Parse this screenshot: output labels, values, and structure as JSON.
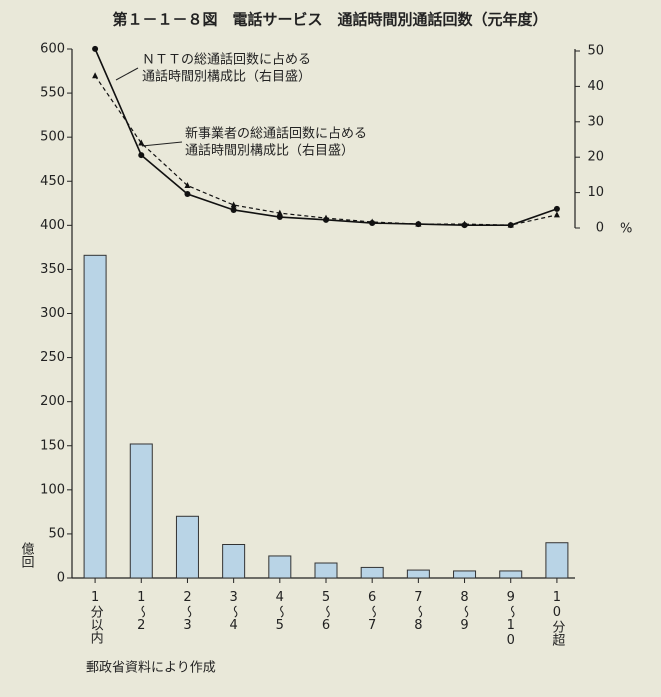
{
  "chart_data": {
    "type": "bar",
    "title": "第１－１－８図　電話サービス　通話時間別通話回数（元年度）",
    "categories": [
      "1分以内",
      "1～2",
      "2～3",
      "3～4",
      "4～5",
      "5～6",
      "6～7",
      "7～8",
      "8～9",
      "9～10",
      "10分超"
    ],
    "y_unit": "億回",
    "y2_unit": "%",
    "ylim": [
      0,
      600
    ],
    "yticks": [
      0,
      50,
      100,
      150,
      200,
      250,
      300,
      350,
      400,
      450,
      500,
      550,
      600
    ],
    "y2lim": [
      0,
      50
    ],
    "y2ticks": [
      0,
      10,
      20,
      30,
      40,
      50
    ],
    "series": [
      {
        "type": "bar",
        "color": "#b9d4e6",
        "values": [
          366,
          152,
          70,
          38,
          25,
          17,
          12,
          9,
          8,
          8,
          40
        ]
      },
      {
        "type": "line",
        "axis": "y2",
        "color": "#111111",
        "marker": "circle",
        "dash": false,
        "values": [
          50.6,
          20.6,
          9.6,
          5.1,
          3.1,
          2.3,
          1.4,
          1.1,
          0.8,
          0.8,
          5.4
        ]
      },
      {
        "type": "line",
        "axis": "y2",
        "color": "#111111",
        "marker": "triangle",
        "dash": true,
        "values": [
          43,
          24,
          12,
          6.5,
          4.2,
          2.8,
          1.7,
          1.1,
          1.1,
          0.8,
          3.7
        ]
      }
    ],
    "annotations": [
      [
        "ＮＴＴの総通話回数に占める",
        "通話時間別構成比（右目盛）"
      ],
      [
        "新事業者の総通話回数に占める",
        "通話時間別構成比（右目盛）"
      ]
    ],
    "source": "郵政省資料により作成"
  }
}
